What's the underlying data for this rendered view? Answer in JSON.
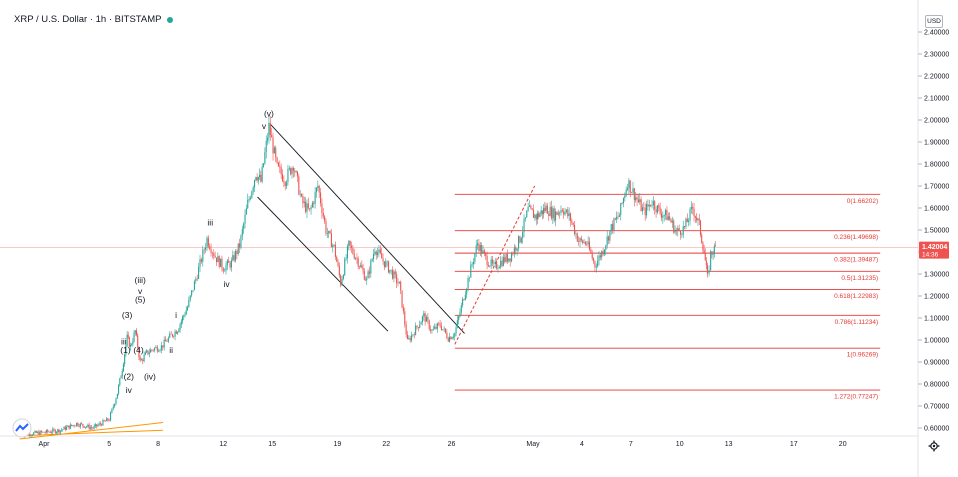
{
  "header": {
    "symbol": "XRP / U.S. Dollar · 1h · BITSTAMP"
  },
  "currency_label": "USD",
  "price_tag": {
    "price": "1.42004",
    "countdown": "14:36"
  },
  "chart_data": {
    "type": "candlestick",
    "title": "XRP / U.S. Dollar · 1h · BITSTAMP",
    "y_ticks": [
      "2.40000",
      "2.30000",
      "2.20000",
      "2.10000",
      "2.00000",
      "1.90000",
      "1.80000",
      "1.70000",
      "1.60000",
      "1.50000",
      "1.40000",
      "1.30000",
      "1.20000",
      "1.10000",
      "1.00000",
      "0.90000",
      "0.80000",
      "0.70000",
      "0.60000"
    ],
    "x_ticks": [
      {
        "label": "Apr",
        "d": 0
      },
      {
        "label": "5",
        "d": 4
      },
      {
        "label": "8",
        "d": 7
      },
      {
        "label": "12",
        "d": 11
      },
      {
        "label": "15",
        "d": 14
      },
      {
        "label": "19",
        "d": 18
      },
      {
        "label": "22",
        "d": 21
      },
      {
        "label": "26",
        "d": 25
      },
      {
        "label": "May",
        "d": 30
      },
      {
        "label": "4",
        "d": 33
      },
      {
        "label": "7",
        "d": 36
      },
      {
        "label": "10",
        "d": 39
      },
      {
        "label": "13",
        "d": 42
      },
      {
        "label": "17",
        "d": 46
      },
      {
        "label": "20",
        "d": 49
      }
    ],
    "ylim": [
      0.55,
      2.43
    ],
    "current_price": 1.42004,
    "price_path": [
      [
        -1.5,
        0.57
      ],
      [
        0,
        0.58
      ],
      [
        1,
        0.59
      ],
      [
        2,
        0.62
      ],
      [
        3,
        0.6
      ],
      [
        4,
        0.64
      ],
      [
        4.5,
        0.76
      ],
      [
        4.8,
        0.87
      ],
      [
        5.1,
        1.01
      ],
      [
        5.3,
        0.97
      ],
      [
        5.6,
        1.04
      ],
      [
        5.9,
        0.9
      ],
      [
        6.3,
        0.94
      ],
      [
        6.7,
        0.96
      ],
      [
        7.2,
        0.97
      ],
      [
        7.8,
        1.02
      ],
      [
        8.2,
        1.05
      ],
      [
        8.8,
        1.15
      ],
      [
        9.4,
        1.3
      ],
      [
        10.0,
        1.46
      ],
      [
        10.5,
        1.38
      ],
      [
        11.0,
        1.33
      ],
      [
        11.5,
        1.35
      ],
      [
        12.0,
        1.43
      ],
      [
        12.5,
        1.62
      ],
      [
        13.0,
        1.76
      ],
      [
        13.3,
        1.72
      ],
      [
        13.8,
        1.97
      ],
      [
        14.3,
        1.78
      ],
      [
        14.8,
        1.73
      ],
      [
        15.3,
        1.8
      ],
      [
        15.8,
        1.63
      ],
      [
        16.3,
        1.58
      ],
      [
        16.8,
        1.7
      ],
      [
        17.3,
        1.5
      ],
      [
        17.8,
        1.42
      ],
      [
        18.2,
        1.26
      ],
      [
        18.7,
        1.43
      ],
      [
        19.2,
        1.37
      ],
      [
        19.8,
        1.27
      ],
      [
        20.3,
        1.42
      ],
      [
        20.8,
        1.36
      ],
      [
        21.3,
        1.31
      ],
      [
        21.8,
        1.25
      ],
      [
        22.3,
        0.99
      ],
      [
        22.8,
        1.05
      ],
      [
        23.3,
        1.11
      ],
      [
        23.8,
        1.04
      ],
      [
        24.3,
        1.07
      ],
      [
        24.8,
        1.01
      ],
      [
        25.2,
        1.03
      ],
      [
        25.6,
        1.15
      ],
      [
        26.1,
        1.3
      ],
      [
        26.6,
        1.44
      ],
      [
        27.1,
        1.37
      ],
      [
        27.6,
        1.33
      ],
      [
        28.1,
        1.36
      ],
      [
        28.6,
        1.38
      ],
      [
        29.2,
        1.46
      ],
      [
        29.7,
        1.59
      ],
      [
        30.2,
        1.56
      ],
      [
        30.8,
        1.6
      ],
      [
        31.3,
        1.57
      ],
      [
        31.8,
        1.6
      ],
      [
        32.3,
        1.55
      ],
      [
        32.8,
        1.45
      ],
      [
        33.3,
        1.44
      ],
      [
        33.8,
        1.34
      ],
      [
        34.3,
        1.41
      ],
      [
        34.8,
        1.51
      ],
      [
        35.3,
        1.57
      ],
      [
        35.8,
        1.72
      ],
      [
        36.3,
        1.65
      ],
      [
        36.8,
        1.58
      ],
      [
        37.3,
        1.63
      ],
      [
        37.8,
        1.58
      ],
      [
        38.3,
        1.56
      ],
      [
        38.8,
        1.49
      ],
      [
        39.3,
        1.51
      ],
      [
        39.8,
        1.6
      ],
      [
        40.2,
        1.52
      ],
      [
        40.5,
        1.4
      ],
      [
        40.7,
        1.28
      ],
      [
        40.9,
        1.39
      ],
      [
        41.2,
        1.42
      ]
    ],
    "fibonacci": {
      "levels": [
        {
          "label": "0(1.66202)",
          "price": 1.66202
        },
        {
          "label": "0.236(1.49698)",
          "price": 1.49698
        },
        {
          "label": "0.382(1.39487)",
          "price": 1.39487
        },
        {
          "label": "0.5(1.31235)",
          "price": 1.31235
        },
        {
          "label": "0.618(1.22983)",
          "price": 1.22983
        },
        {
          "label": "0.786(1.11234)",
          "price": 1.11234
        },
        {
          "label": "1(0.96269)",
          "price": 0.96269
        },
        {
          "label": "1.272(0.77247)",
          "price": 0.77247
        }
      ],
      "from_d": 25.2,
      "to_d": 51.3
    },
    "channel": {
      "upper": [
        [
          13.9,
          1.98
        ],
        [
          25.8,
          1.03
        ]
      ],
      "lower": [
        [
          13.1,
          1.65
        ],
        [
          21.1,
          1.04
        ]
      ]
    },
    "dashed_projection": [
      [
        25.2,
        0.98
      ],
      [
        30.1,
        1.7
      ]
    ],
    "support_lines": [
      [
        [
          -1.5,
          0.55
        ],
        [
          7.3,
          0.625
        ]
      ],
      [
        [
          -1.5,
          0.565
        ],
        [
          7.3,
          0.59
        ]
      ]
    ],
    "wave_labels": [
      {
        "text": "(v)",
        "d": 13.8,
        "price": 2.015
      },
      {
        "text": "v",
        "d": 13.5,
        "price": 1.96
      },
      {
        "text": "iii",
        "d": 10.2,
        "price": 1.52
      },
      {
        "text": "iv",
        "d": 11.2,
        "price": 1.24
      },
      {
        "text": "(iii)",
        "d": 5.9,
        "price": 1.26
      },
      {
        "text": "v",
        "d": 5.9,
        "price": 1.21
      },
      {
        "text": "(5)",
        "d": 5.9,
        "price": 1.17
      },
      {
        "text": "(3)",
        "d": 5.1,
        "price": 1.1
      },
      {
        "text": "i",
        "d": 8.1,
        "price": 1.1
      },
      {
        "text": "iii",
        "d": 4.9,
        "price": 0.98
      },
      {
        "text": "(1)",
        "d": 5.0,
        "price": 0.94
      },
      {
        "text": "(4)",
        "d": 5.8,
        "price": 0.94
      },
      {
        "text": "ii",
        "d": 7.8,
        "price": 0.94
      },
      {
        "text": "(2)",
        "d": 5.2,
        "price": 0.82
      },
      {
        "text": "(iv)",
        "d": 6.5,
        "price": 0.82
      },
      {
        "text": "iv",
        "d": 5.2,
        "price": 0.76
      }
    ]
  }
}
